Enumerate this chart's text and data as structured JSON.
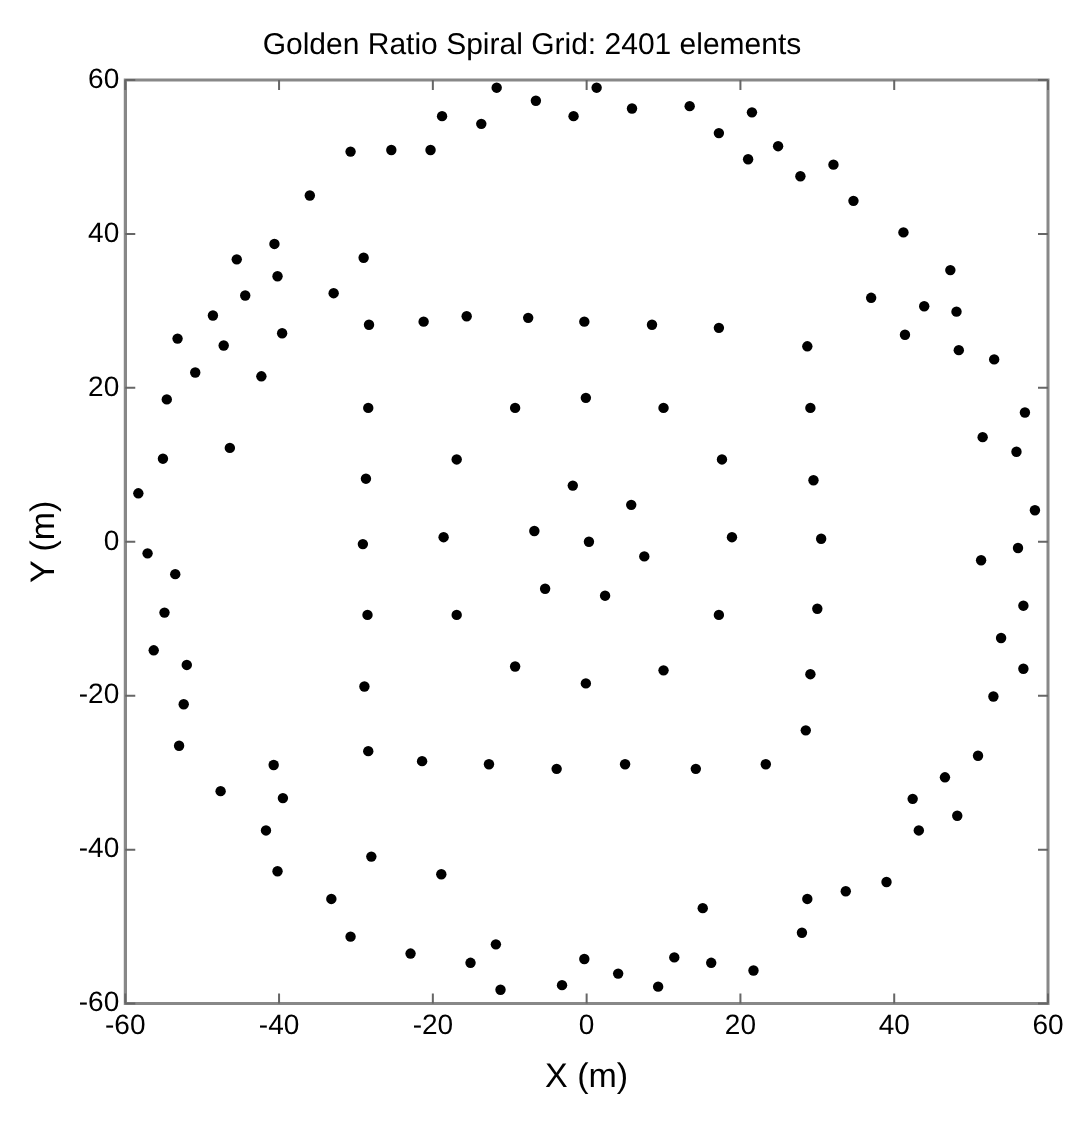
{
  "chart_data": {
    "type": "scatter",
    "title": "Golden Ratio Spiral Grid: 2401 elements",
    "xlabel": "X (m)",
    "ylabel": "Y (m)",
    "xlim": [
      -60,
      60
    ],
    "ylim": [
      -60,
      60
    ],
    "xticks": [
      -60,
      -40,
      -20,
      0,
      20,
      40,
      60
    ],
    "yticks": [
      -60,
      -40,
      -20,
      0,
      20,
      40,
      60
    ],
    "grid": false,
    "legend": false,
    "marker": "circle",
    "series": [
      {
        "color": "#000000",
        "x": [
          -11.7,
          -6.6,
          -1.7,
          -18.8,
          -13.7,
          -30.7,
          -25.4,
          -20.3,
          -36.0,
          -40.6,
          -45.5,
          -48.6,
          -53.2,
          -54.6,
          -55.1,
          -58.3,
          -50.9,
          -40.2,
          -44.4,
          1.3,
          13.4,
          21.5,
          5.9,
          24.9,
          32.1,
          34.7,
          41.2,
          47.3,
          48.1,
          53.0,
          57.0,
          55.9,
          58.3,
          27.8,
          43.9,
          -57.1,
          -54.9,
          -56.3,
          -52.4,
          -53.0,
          -47.6,
          -41.7,
          -40.2,
          -33.2,
          -30.7,
          -22.9,
          -15.1,
          -11.2,
          -3.2,
          -53.5,
          -52.0,
          56.1,
          56.8,
          56.8,
          53.9,
          52.9,
          50.9,
          48.2,
          43.2,
          39.0,
          33.7,
          28.0,
          21.7,
          16.2,
          9.3,
          4.1,
          -0.3,
          51.3,
          -29.0,
          -32.9,
          -39.6,
          -42.3,
          -46.4,
          -47.2,
          21.0,
          17.2,
          37.0,
          41.4,
          51.5,
          48.4,
          -40.7,
          -39.5,
          -28.0,
          -18.9,
          -11.8,
          46.6,
          42.4,
          28.7,
          15.1,
          11.4,
          -28.3,
          -21.2,
          -15.6,
          -7.6,
          -0.3,
          8.5,
          17.2,
          28.7,
          29.1,
          29.5,
          30.5,
          30.0,
          29.1,
          28.5,
          23.3,
          14.2,
          5.0,
          -3.9,
          -12.7,
          -21.4,
          -28.4,
          -28.9,
          -28.5,
          -29.1,
          -28.7,
          -28.4,
          -9.3,
          -0.1,
          10.0,
          17.6,
          18.9,
          17.2,
          10.0,
          -0.1,
          -9.3,
          -16.9,
          -18.6,
          -16.9,
          -1.8,
          5.8,
          7.5,
          2.4,
          -5.4,
          -6.8,
          0.3
        ],
        "values": [
          59.0,
          57.3,
          55.3,
          55.3,
          54.3,
          50.7,
          50.9,
          50.9,
          45.0,
          38.7,
          36.7,
          29.4,
          26.4,
          18.5,
          10.8,
          6.3,
          22.0,
          34.5,
          32.0,
          59.0,
          56.6,
          55.8,
          56.3,
          51.4,
          49.0,
          44.3,
          40.2,
          35.3,
          29.9,
          23.7,
          16.8,
          11.7,
          4.1,
          47.5,
          30.6,
          -1.5,
          -9.2,
          -14.1,
          -21.1,
          -26.5,
          -32.4,
          -37.5,
          -42.8,
          -46.4,
          -51.3,
          -53.5,
          -54.7,
          -58.2,
          -57.6,
          -4.2,
          -16.0,
          -0.8,
          -8.3,
          -16.5,
          -12.5,
          -20.1,
          -27.8,
          -35.6,
          -37.5,
          -44.2,
          -45.4,
          -50.8,
          -55.7,
          -54.7,
          -57.8,
          -56.1,
          -54.2,
          -2.4,
          36.9,
          32.3,
          27.1,
          21.5,
          12.2,
          25.5,
          49.7,
          53.1,
          31.7,
          26.9,
          13.6,
          24.9,
          -29.0,
          -33.3,
          -40.9,
          -43.2,
          -52.3,
          -30.6,
          -33.4,
          -46.4,
          -47.6,
          -54.0,
          28.2,
          28.6,
          29.3,
          29.1,
          28.6,
          28.2,
          27.8,
          25.4,
          17.4,
          8.0,
          0.4,
          -8.7,
          -17.2,
          -24.5,
          -28.9,
          -29.5,
          -28.9,
          -29.5,
          -28.9,
          -28.5,
          -27.2,
          -18.8,
          -9.5,
          -0.3,
          8.2,
          17.4,
          17.4,
          18.7,
          17.4,
          10.7,
          0.6,
          -9.5,
          -16.7,
          -18.4,
          -16.2,
          -9.5,
          0.6,
          10.7,
          7.3,
          4.8,
          -1.9,
          -7.0,
          -6.1,
          1.4,
          0.0
        ]
      }
    ]
  }
}
